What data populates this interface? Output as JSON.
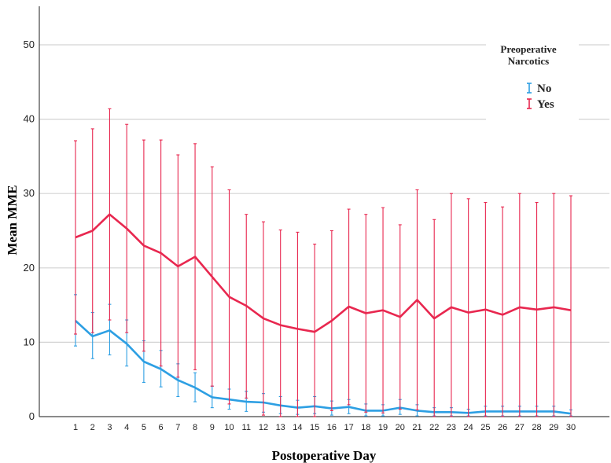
{
  "chart_data": {
    "type": "line",
    "title": "",
    "xlabel": "Postoperative Day",
    "ylabel": "Mean MME",
    "x": [
      1,
      2,
      3,
      4,
      5,
      6,
      7,
      8,
      9,
      10,
      11,
      12,
      13,
      14,
      15,
      16,
      17,
      18,
      19,
      20,
      21,
      22,
      23,
      24,
      25,
      26,
      27,
      28,
      29,
      30
    ],
    "ylim": [
      0,
      55
    ],
    "yticks": [
      0,
      10,
      20,
      30,
      40,
      50
    ],
    "grid": true,
    "legend": {
      "title_line1": "Preoperative",
      "title_line2": "Narcotics",
      "placement": "top-right"
    },
    "series": [
      {
        "name": "No",
        "color": "#2d9fe3",
        "values": [
          12.9,
          10.8,
          11.6,
          9.8,
          7.4,
          6.4,
          4.9,
          3.9,
          2.6,
          2.3,
          2.0,
          1.9,
          1.5,
          1.2,
          1.4,
          1.1,
          1.3,
          0.8,
          0.8,
          1.2,
          0.8,
          0.6,
          0.6,
          0.5,
          0.7,
          0.7,
          0.7,
          0.7,
          0.7,
          0.4
        ],
        "lower": [
          9.5,
          7.8,
          8.3,
          6.8,
          4.6,
          4.0,
          2.7,
          2.0,
          1.2,
          1.0,
          0.7,
          0.6,
          0.4,
          0.3,
          0.4,
          0.2,
          0.4,
          0.1,
          0.1,
          0.3,
          0.1,
          0.1,
          0.1,
          0.1,
          0.1,
          0.1,
          0.1,
          0.1,
          0.1,
          0.1
        ],
        "upper": [
          16.4,
          14.0,
          15.1,
          13.0,
          10.2,
          8.9,
          7.1,
          5.9,
          4.1,
          3.7,
          3.4,
          3.1,
          2.7,
          2.2,
          2.7,
          2.1,
          2.3,
          1.7,
          1.6,
          2.3,
          1.6,
          1.2,
          1.2,
          1.0,
          1.4,
          1.4,
          1.4,
          1.4,
          1.4,
          0.9
        ]
      },
      {
        "name": "Yes",
        "color": "#e8274f",
        "values": [
          24.1,
          25.0,
          27.2,
          25.3,
          23.0,
          22.0,
          20.2,
          21.5,
          18.8,
          16.1,
          14.9,
          13.2,
          12.3,
          11.8,
          11.4,
          12.9,
          14.8,
          13.9,
          14.3,
          13.4,
          15.7,
          13.2,
          14.7,
          14.0,
          14.4,
          13.7,
          14.7,
          14.4,
          14.7,
          14.3
        ],
        "lower": [
          11.1,
          11.3,
          13.0,
          11.3,
          8.8,
          6.8,
          5.3,
          6.3,
          4.1,
          1.7,
          2.5,
          0.2,
          0.0,
          0.0,
          0.0,
          0.8,
          1.6,
          0.6,
          0.5,
          1.0,
          0.9,
          0.0,
          0.0,
          0.0,
          0.0,
          0.0,
          0.0,
          0.0,
          0.0,
          0.0
        ],
        "upper": [
          37.1,
          38.7,
          41.4,
          39.3,
          37.2,
          37.2,
          35.2,
          36.7,
          33.6,
          30.5,
          27.2,
          26.2,
          25.1,
          24.8,
          23.2,
          25.0,
          27.9,
          27.2,
          28.1,
          25.8,
          30.5,
          26.5,
          30.0,
          29.3,
          28.8,
          28.2,
          30.0,
          28.8,
          30.0,
          29.7
        ]
      }
    ]
  }
}
